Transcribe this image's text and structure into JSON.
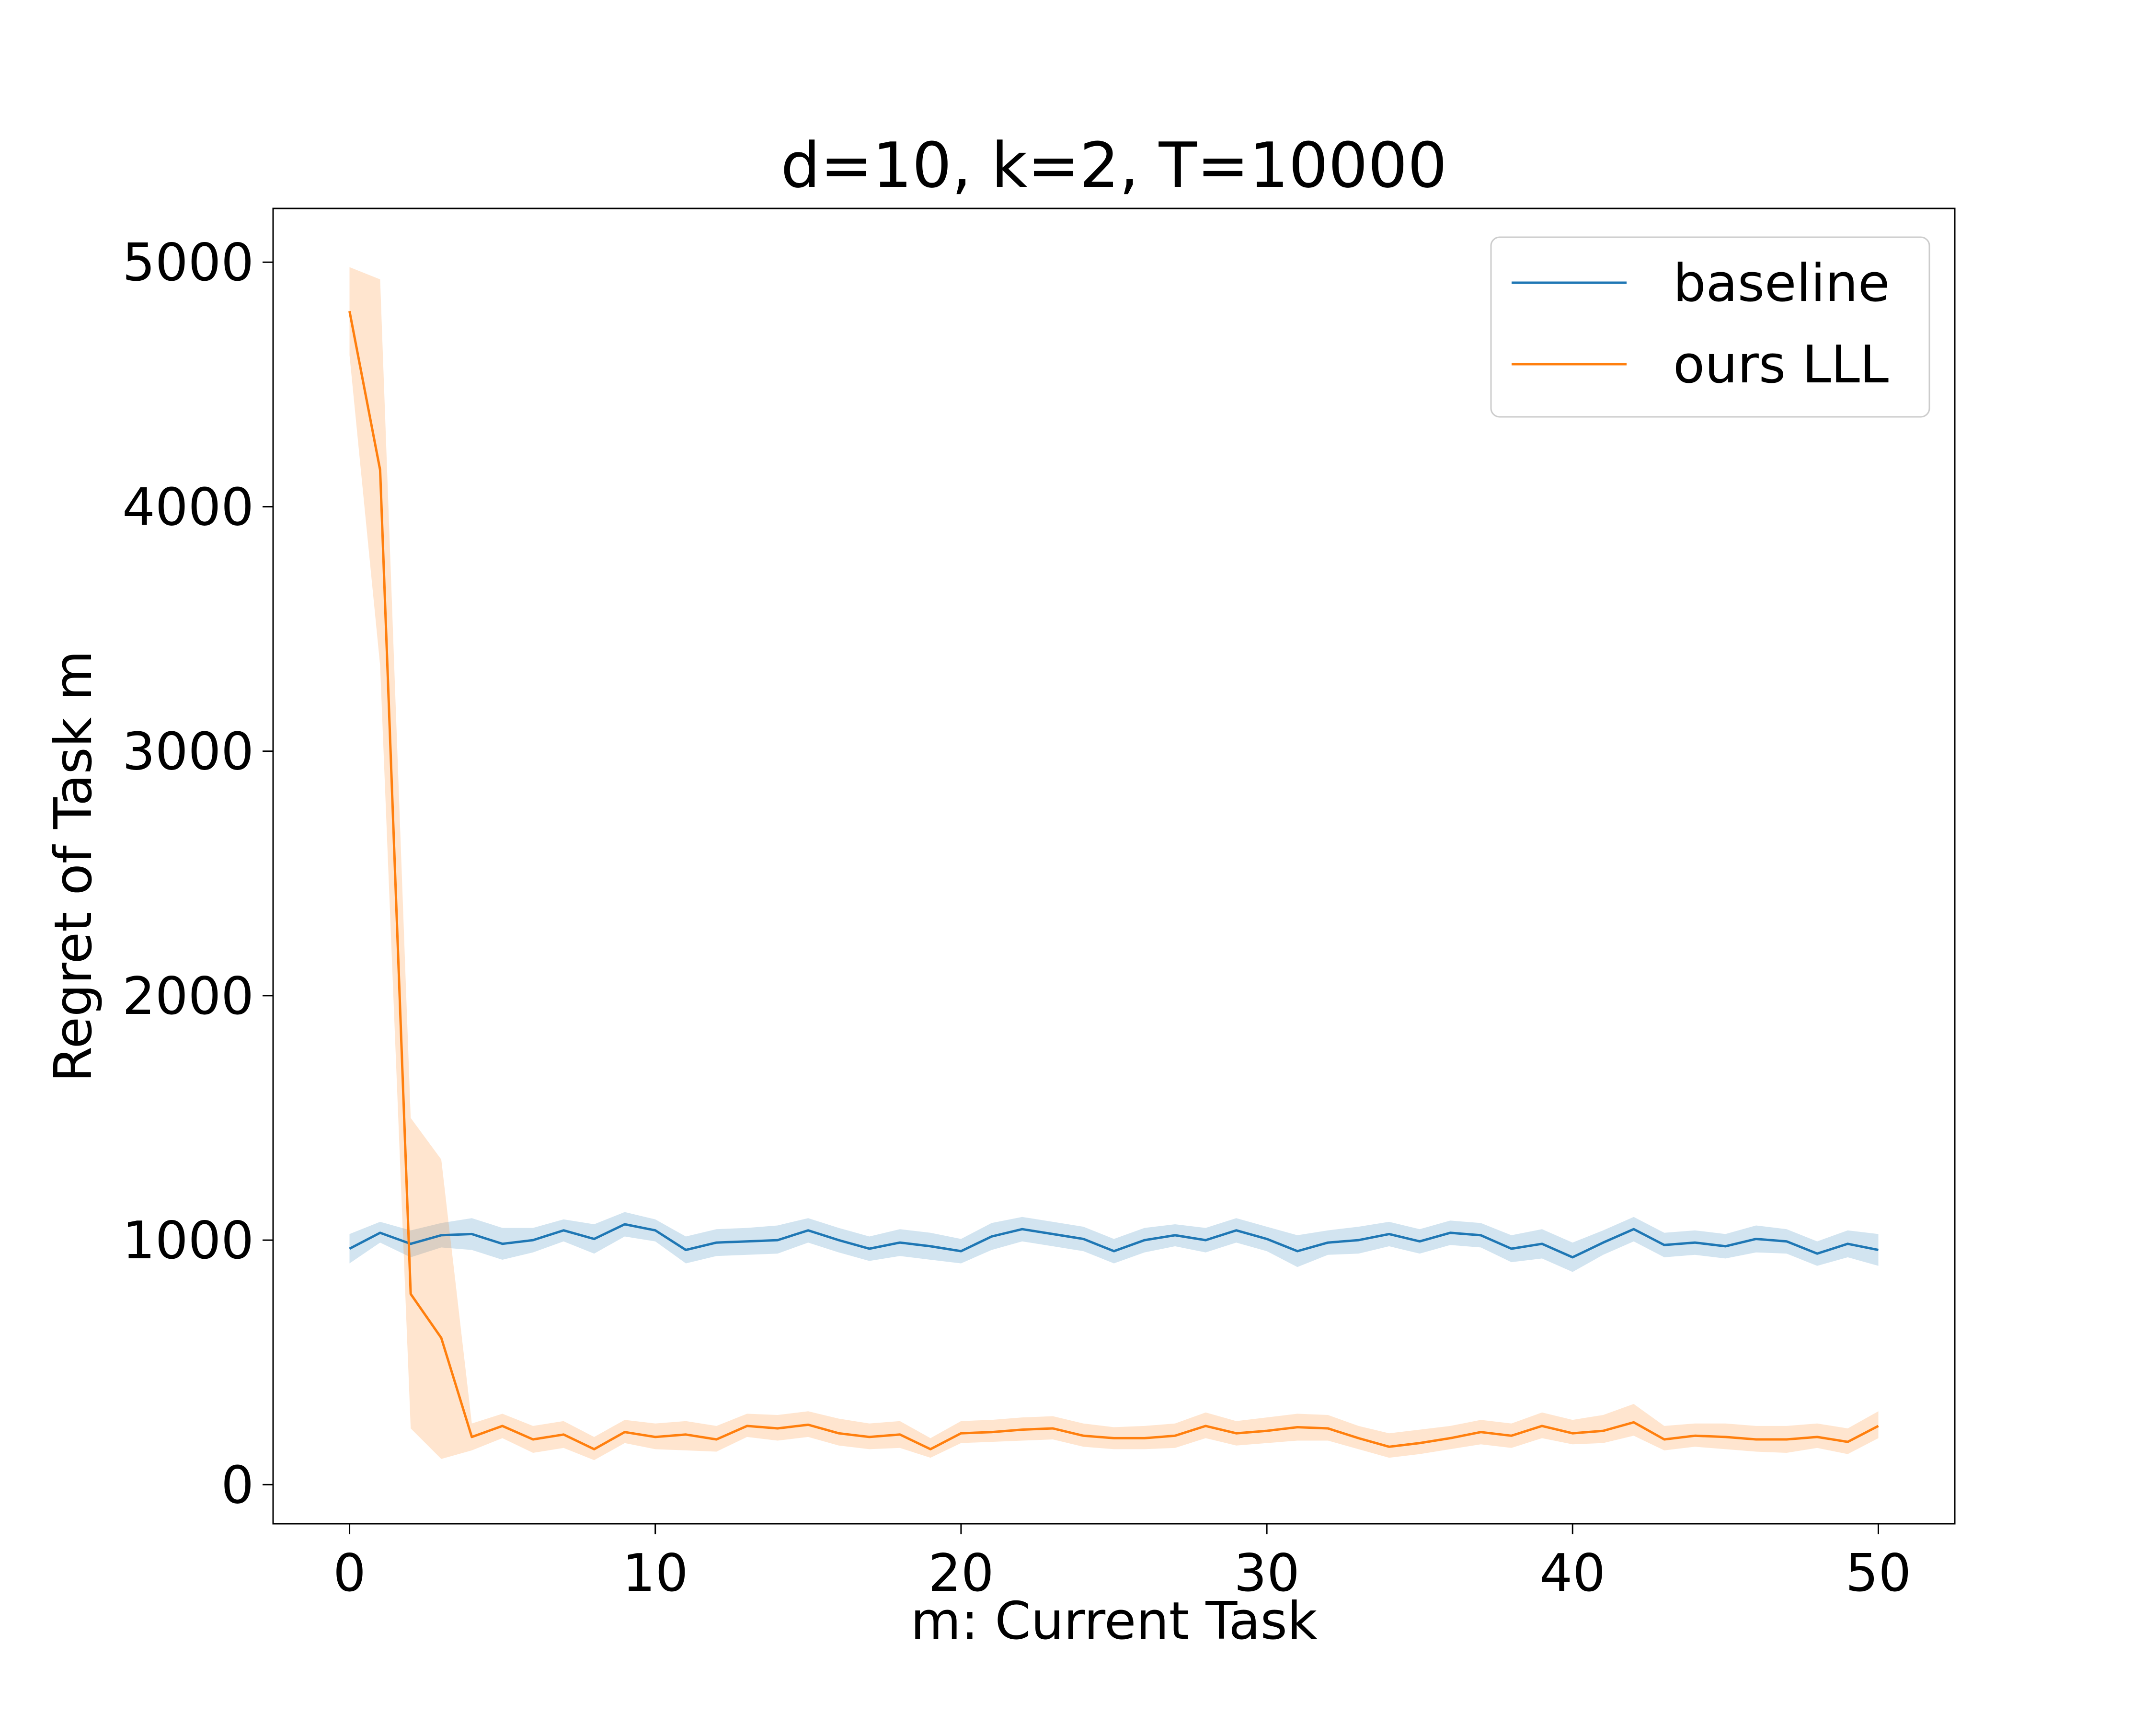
{
  "chart_data": {
    "type": "line",
    "title": "d=10, k=2, T=10000",
    "xlabel": "m: Current Task",
    "ylabel": "Regret of Task m",
    "xlim": [
      -2.5,
      52.5
    ],
    "ylim": [
      -160,
      5220
    ],
    "xticks": [
      0,
      10,
      20,
      30,
      40,
      50
    ],
    "yticks": [
      0,
      1000,
      2000,
      3000,
      4000,
      5000
    ],
    "grid": false,
    "legend_position": "top-right",
    "x": [
      0,
      1,
      2,
      3,
      4,
      5,
      6,
      7,
      8,
      9,
      10,
      11,
      12,
      13,
      14,
      15,
      16,
      17,
      18,
      19,
      20,
      21,
      22,
      23,
      24,
      25,
      26,
      27,
      28,
      29,
      30,
      31,
      32,
      33,
      34,
      35,
      36,
      37,
      38,
      39,
      40,
      41,
      42,
      43,
      44,
      45,
      46,
      47,
      48,
      49,
      50
    ],
    "series": [
      {
        "name": "baseline",
        "color": "#1f77b4",
        "values": [
          965,
          1030,
          985,
          1020,
          1025,
          985,
          1000,
          1040,
          1005,
          1065,
          1040,
          960,
          990,
          995,
          1000,
          1040,
          1000,
          965,
          990,
          975,
          955,
          1015,
          1045,
          1025,
          1005,
          955,
          1000,
          1020,
          1000,
          1040,
          1005,
          955,
          990,
          1000,
          1025,
          995,
          1030,
          1020,
          965,
          985,
          930,
          990,
          1045,
          980,
          990,
          975,
          1005,
          995,
          945,
          985,
          960
        ],
        "lower": [
          905,
          990,
          930,
          970,
          960,
          920,
          950,
          995,
          945,
          1015,
          995,
          905,
          935,
          940,
          945,
          990,
          950,
          915,
          935,
          920,
          905,
          960,
          995,
          975,
          955,
          905,
          950,
          975,
          950,
          990,
          955,
          890,
          940,
          945,
          975,
          945,
          980,
          970,
          910,
          925,
          870,
          940,
          995,
          930,
          940,
          925,
          950,
          945,
          895,
          930,
          895
        ],
        "upper": [
          1025,
          1075,
          1040,
          1070,
          1090,
          1050,
          1050,
          1085,
          1065,
          1115,
          1085,
          1015,
          1045,
          1050,
          1060,
          1090,
          1050,
          1015,
          1045,
          1030,
          1005,
          1070,
          1095,
          1075,
          1055,
          1005,
          1050,
          1065,
          1050,
          1090,
          1055,
          1020,
          1040,
          1055,
          1075,
          1045,
          1080,
          1070,
          1020,
          1045,
          990,
          1040,
          1095,
          1030,
          1040,
          1025,
          1060,
          1045,
          995,
          1040,
          1025
        ]
      },
      {
        "name": "ours LLL",
        "color": "#ff7f0e",
        "values": [
          4800,
          4150,
          780,
          600,
          195,
          240,
          185,
          205,
          145,
          215,
          195,
          205,
          185,
          240,
          230,
          245,
          210,
          195,
          205,
          145,
          210,
          215,
          225,
          230,
          200,
          190,
          190,
          200,
          240,
          210,
          220,
          235,
          230,
          190,
          155,
          170,
          190,
          215,
          200,
          240,
          210,
          220,
          255,
          185,
          200,
          195,
          185,
          185,
          195,
          175,
          240
        ],
        "lower": [
          4620,
          3350,
          230,
          105,
          140,
          190,
          130,
          150,
          100,
          170,
          145,
          140,
          135,
          195,
          180,
          195,
          160,
          145,
          150,
          110,
          170,
          175,
          180,
          185,
          155,
          145,
          145,
          150,
          190,
          160,
          170,
          180,
          180,
          145,
          110,
          125,
          145,
          165,
          150,
          190,
          165,
          170,
          200,
          140,
          155,
          145,
          135,
          130,
          150,
          125,
          190
        ],
        "upper": [
          4980,
          4930,
          1500,
          1330,
          250,
          290,
          240,
          260,
          195,
          265,
          250,
          260,
          240,
          290,
          285,
          300,
          270,
          250,
          260,
          190,
          260,
          265,
          275,
          280,
          250,
          235,
          240,
          250,
          295,
          260,
          275,
          290,
          285,
          240,
          210,
          225,
          240,
          265,
          250,
          295,
          265,
          285,
          330,
          240,
          250,
          250,
          240,
          240,
          250,
          230,
          300
        ]
      }
    ]
  }
}
